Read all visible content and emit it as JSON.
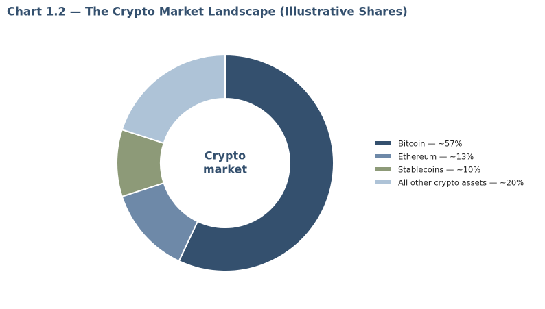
{
  "chart_data": {
    "type": "donut",
    "title": "Chart 1.2 — The Crypto Market Landscape (Illustrative Shares)",
    "center_label": [
      "Crypto",
      "market"
    ],
    "categories": [
      "Bitcoin — ~57%",
      "Ethereum — ~13%",
      "Stablecoins — ~10%",
      "All other crypto assets — ~20%"
    ],
    "values": [
      57,
      13,
      10,
      20
    ],
    "colors": [
      "#34506e",
      "#6e89a8",
      "#8d9a78",
      "#aec3d7"
    ],
    "legend": "right"
  }
}
